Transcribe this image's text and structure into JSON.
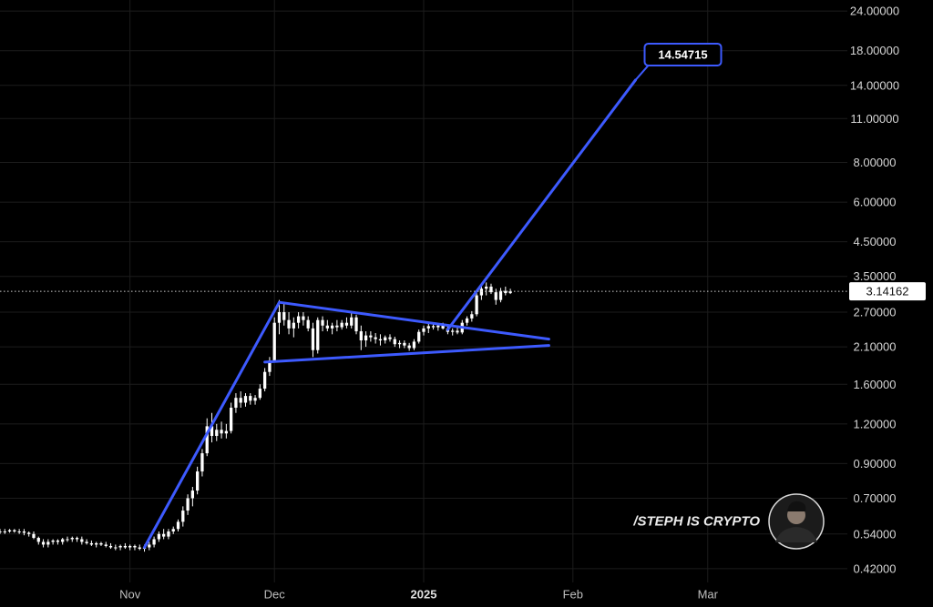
{
  "chart_data": {
    "type": "candlestick",
    "scale": "log",
    "ylim": [
      0.38,
      26
    ],
    "y_ticks": [
      "24.00000",
      "18.00000",
      "14.00000",
      "11.00000",
      "8.00000",
      "6.00000",
      "4.50000",
      "3.50000",
      "2.70000",
      "2.10000",
      "1.60000",
      "1.20000",
      "0.90000",
      "0.70000",
      "0.54000",
      "0.42000"
    ],
    "x_ticks": [
      {
        "label": "Nov",
        "date": "2024-11-01",
        "bold": false
      },
      {
        "label": "Dec",
        "date": "2024-12-01",
        "bold": false
      },
      {
        "label": "2025",
        "date": "2025-01-01",
        "bold": true
      },
      {
        "label": "Feb",
        "date": "2025-02-01",
        "bold": false
      },
      {
        "label": "Mar",
        "date": "2025-03-01",
        "bold": false
      }
    ],
    "xlim": [
      "2024-10-05",
      "2025-03-30"
    ],
    "current_price": "3.14162",
    "target_label": "14.54715",
    "candles": [
      [
        "2024-10-05",
        0.55,
        0.56,
        0.54,
        0.55
      ],
      [
        "2024-10-06",
        0.55,
        0.56,
        0.54,
        0.55
      ],
      [
        "2024-10-07",
        0.55,
        0.56,
        0.545,
        0.555
      ],
      [
        "2024-10-08",
        0.555,
        0.56,
        0.545,
        0.55
      ],
      [
        "2024-10-09",
        0.55,
        0.56,
        0.54,
        0.55
      ],
      [
        "2024-10-10",
        0.55,
        0.56,
        0.535,
        0.545
      ],
      [
        "2024-10-11",
        0.545,
        0.55,
        0.53,
        0.54
      ],
      [
        "2024-10-12",
        0.54,
        0.55,
        0.52,
        0.525
      ],
      [
        "2024-10-13",
        0.525,
        0.53,
        0.5,
        0.51
      ],
      [
        "2024-10-14",
        0.51,
        0.52,
        0.49,
        0.5
      ],
      [
        "2024-10-15",
        0.5,
        0.52,
        0.49,
        0.51
      ],
      [
        "2024-10-16",
        0.51,
        0.52,
        0.5,
        0.515
      ],
      [
        "2024-10-17",
        0.515,
        0.52,
        0.5,
        0.51
      ],
      [
        "2024-10-18",
        0.51,
        0.525,
        0.5,
        0.52
      ],
      [
        "2024-10-19",
        0.52,
        0.53,
        0.51,
        0.52
      ],
      [
        "2024-10-20",
        0.52,
        0.53,
        0.51,
        0.525
      ],
      [
        "2024-10-21",
        0.525,
        0.53,
        0.51,
        0.52
      ],
      [
        "2024-10-22",
        0.52,
        0.53,
        0.5,
        0.51
      ],
      [
        "2024-10-23",
        0.51,
        0.52,
        0.5,
        0.505
      ],
      [
        "2024-10-24",
        0.505,
        0.515,
        0.495,
        0.5
      ],
      [
        "2024-10-25",
        0.5,
        0.51,
        0.49,
        0.505
      ],
      [
        "2024-10-26",
        0.505,
        0.51,
        0.495,
        0.5
      ],
      [
        "2024-10-27",
        0.5,
        0.51,
        0.49,
        0.495
      ],
      [
        "2024-10-28",
        0.495,
        0.505,
        0.485,
        0.49
      ],
      [
        "2024-10-29",
        0.49,
        0.5,
        0.48,
        0.49
      ],
      [
        "2024-10-30",
        0.49,
        0.5,
        0.48,
        0.495
      ],
      [
        "2024-10-31",
        0.495,
        0.505,
        0.485,
        0.49
      ],
      [
        "2024-11-01",
        0.49,
        0.5,
        0.48,
        0.495
      ],
      [
        "2024-11-02",
        0.495,
        0.5,
        0.48,
        0.49
      ],
      [
        "2024-11-03",
        0.49,
        0.5,
        0.48,
        0.485
      ],
      [
        "2024-11-04",
        0.485,
        0.5,
        0.475,
        0.49
      ],
      [
        "2024-11-05",
        0.49,
        0.51,
        0.48,
        0.5
      ],
      [
        "2024-11-06",
        0.5,
        0.53,
        0.49,
        0.52
      ],
      [
        "2024-11-07",
        0.52,
        0.55,
        0.51,
        0.54
      ],
      [
        "2024-11-08",
        0.54,
        0.56,
        0.52,
        0.53
      ],
      [
        "2024-11-09",
        0.53,
        0.56,
        0.52,
        0.55
      ],
      [
        "2024-11-10",
        0.55,
        0.57,
        0.54,
        0.56
      ],
      [
        "2024-11-11",
        0.56,
        0.6,
        0.55,
        0.59
      ],
      [
        "2024-11-12",
        0.59,
        0.66,
        0.57,
        0.64
      ],
      [
        "2024-11-13",
        0.64,
        0.72,
        0.62,
        0.7
      ],
      [
        "2024-11-14",
        0.7,
        0.76,
        0.66,
        0.74
      ],
      [
        "2024-11-15",
        0.74,
        0.88,
        0.72,
        0.85
      ],
      [
        "2024-11-16",
        0.85,
        1.0,
        0.82,
        0.97
      ],
      [
        "2024-11-17",
        0.97,
        1.25,
        0.95,
        1.18
      ],
      [
        "2024-11-18",
        1.18,
        1.3,
        1.05,
        1.1
      ],
      [
        "2024-11-19",
        1.1,
        1.2,
        1.06,
        1.15
      ],
      [
        "2024-11-20",
        1.15,
        1.22,
        1.08,
        1.12
      ],
      [
        "2024-11-21",
        1.12,
        1.2,
        1.08,
        1.14
      ],
      [
        "2024-11-22",
        1.14,
        1.4,
        1.12,
        1.35
      ],
      [
        "2024-11-23",
        1.35,
        1.5,
        1.3,
        1.45
      ],
      [
        "2024-11-24",
        1.45,
        1.52,
        1.35,
        1.4
      ],
      [
        "2024-11-25",
        1.4,
        1.5,
        1.36,
        1.47
      ],
      [
        "2024-11-26",
        1.47,
        1.5,
        1.38,
        1.42
      ],
      [
        "2024-11-27",
        1.42,
        1.48,
        1.38,
        1.45
      ],
      [
        "2024-11-28",
        1.45,
        1.6,
        1.43,
        1.55
      ],
      [
        "2024-11-29",
        1.55,
        1.8,
        1.52,
        1.75
      ],
      [
        "2024-11-30",
        1.75,
        1.95,
        1.7,
        1.9
      ],
      [
        "2024-12-01",
        1.9,
        2.6,
        1.88,
        2.5
      ],
      [
        "2024-12-02",
        2.5,
        2.95,
        2.3,
        2.7
      ],
      [
        "2024-12-03",
        2.7,
        2.9,
        2.45,
        2.55
      ],
      [
        "2024-12-04",
        2.55,
        2.7,
        2.3,
        2.4
      ],
      [
        "2024-12-05",
        2.4,
        2.6,
        2.25,
        2.5
      ],
      [
        "2024-12-06",
        2.5,
        2.7,
        2.4,
        2.62
      ],
      [
        "2024-12-07",
        2.62,
        2.7,
        2.45,
        2.55
      ],
      [
        "2024-12-08",
        2.55,
        2.62,
        2.35,
        2.4
      ],
      [
        "2024-12-09",
        2.4,
        2.5,
        1.95,
        2.05
      ],
      [
        "2024-12-10",
        2.05,
        2.6,
        2.0,
        2.55
      ],
      [
        "2024-12-11",
        2.55,
        2.62,
        2.35,
        2.45
      ],
      [
        "2024-12-12",
        2.45,
        2.55,
        2.35,
        2.4
      ],
      [
        "2024-12-13",
        2.4,
        2.5,
        2.3,
        2.45
      ],
      [
        "2024-12-14",
        2.45,
        2.55,
        2.35,
        2.42
      ],
      [
        "2024-12-15",
        2.42,
        2.55,
        2.38,
        2.5
      ],
      [
        "2024-12-16",
        2.5,
        2.6,
        2.4,
        2.45
      ],
      [
        "2024-12-17",
        2.45,
        2.7,
        2.4,
        2.6
      ],
      [
        "2024-12-18",
        2.6,
        2.65,
        2.3,
        2.35
      ],
      [
        "2024-12-19",
        2.35,
        2.45,
        2.05,
        2.2
      ],
      [
        "2024-12-20",
        2.2,
        2.35,
        2.1,
        2.28
      ],
      [
        "2024-12-21",
        2.28,
        2.35,
        2.18,
        2.25
      ],
      [
        "2024-12-22",
        2.25,
        2.32,
        2.15,
        2.22
      ],
      [
        "2024-12-23",
        2.22,
        2.3,
        2.12,
        2.2
      ],
      [
        "2024-12-24",
        2.2,
        2.28,
        2.15,
        2.25
      ],
      [
        "2024-12-25",
        2.25,
        2.3,
        2.18,
        2.22
      ],
      [
        "2024-12-26",
        2.22,
        2.26,
        2.1,
        2.14
      ],
      [
        "2024-12-27",
        2.14,
        2.2,
        2.08,
        2.16
      ],
      [
        "2024-12-28",
        2.16,
        2.2,
        2.08,
        2.12
      ],
      [
        "2024-12-29",
        2.12,
        2.16,
        2.04,
        2.08
      ],
      [
        "2024-12-30",
        2.08,
        2.22,
        2.05,
        2.18
      ],
      [
        "2024-12-31",
        2.18,
        2.38,
        2.15,
        2.34
      ],
      [
        "2025-01-01",
        2.34,
        2.45,
        2.28,
        2.4
      ],
      [
        "2025-01-02",
        2.4,
        2.48,
        2.32,
        2.44
      ],
      [
        "2025-01-03",
        2.44,
        2.5,
        2.38,
        2.42
      ],
      [
        "2025-01-04",
        2.42,
        2.48,
        2.36,
        2.45
      ],
      [
        "2025-01-05",
        2.45,
        2.5,
        2.38,
        2.4
      ],
      [
        "2025-01-06",
        2.4,
        2.46,
        2.3,
        2.34
      ],
      [
        "2025-01-07",
        2.34,
        2.4,
        2.28,
        2.36
      ],
      [
        "2025-01-08",
        2.36,
        2.42,
        2.3,
        2.33
      ],
      [
        "2025-01-09",
        2.33,
        2.55,
        2.3,
        2.5
      ],
      [
        "2025-01-10",
        2.5,
        2.62,
        2.45,
        2.58
      ],
      [
        "2025-01-11",
        2.58,
        2.72,
        2.52,
        2.66
      ],
      [
        "2025-01-12",
        2.66,
        3.1,
        2.62,
        3.05
      ],
      [
        "2025-01-13",
        3.05,
        3.3,
        2.95,
        3.2
      ],
      [
        "2025-01-14",
        3.2,
        3.35,
        3.05,
        3.25
      ],
      [
        "2025-01-15",
        3.25,
        3.32,
        3.08,
        3.12
      ],
      [
        "2025-01-16",
        3.12,
        3.2,
        2.85,
        2.95
      ],
      [
        "2025-01-17",
        2.95,
        3.22,
        2.9,
        3.15
      ],
      [
        "2025-01-18",
        3.15,
        3.25,
        3.05,
        3.1
      ],
      [
        "2025-01-19",
        3.1,
        3.2,
        3.08,
        3.14
      ]
    ],
    "trendlines": [
      {
        "name": "pole",
        "points": [
          [
            "2024-11-04",
            0.49
          ],
          [
            "2024-12-02",
            2.9
          ]
        ]
      },
      {
        "name": "triangle-top",
        "points": [
          [
            "2024-12-02",
            2.9
          ],
          [
            "2025-01-27",
            2.22
          ]
        ]
      },
      {
        "name": "triangle-bottom",
        "points": [
          [
            "2024-11-29",
            1.88
          ],
          [
            "2025-01-27",
            2.12
          ]
        ]
      },
      {
        "name": "projection",
        "points": [
          [
            "2025-01-06",
            2.38
          ],
          [
            "2025-02-14",
            14.54715
          ]
        ]
      }
    ]
  },
  "watermark": {
    "text": "/STEPH IS CRYPTO"
  }
}
